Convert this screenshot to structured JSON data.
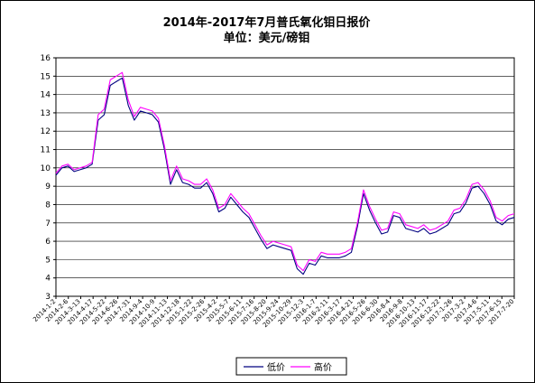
{
  "chart_data": {
    "type": "line",
    "title": "2014年-2017年7月普氏氧化钼日报价",
    "subtitle": "单位：美元/磅钼",
    "ylim": [
      3,
      16
    ],
    "yticks": [
      3,
      4,
      5,
      6,
      7,
      8,
      9,
      10,
      11,
      12,
      13,
      14,
      15,
      16
    ],
    "grid": true,
    "legend_position": "bottom-center",
    "x_tick_labels": [
      "2014-1-2",
      "2014-2-6",
      "2014-3-13",
      "2014-4-17",
      "2014-5-22",
      "2014-6-26",
      "2014-7-31",
      "2014-9-4",
      "2014-10-9",
      "2014-11-13",
      "2014-12-18",
      "2015-1-22",
      "2015-2-26",
      "2015-4-2",
      "2015-5-7",
      "2015-6-11",
      "2015-7-16",
      "2015-8-20",
      "2015-9-24",
      "2015-10-29",
      "2015-12-3",
      "2016-1-7",
      "2016-2-11",
      "2016-3-17",
      "2016-4-21",
      "2016-5-26",
      "2016-6-30",
      "2016-8-4",
      "2016-9-8",
      "2016-10-13",
      "2016-11-17",
      "2016-12-22",
      "2017-1-26",
      "2017-3-2",
      "2017-4-6",
      "2017-5-11",
      "2017-6-15",
      "2017-7-20"
    ],
    "series": [
      {
        "name": "低价",
        "color": "#000080",
        "values": [
          9.6,
          10.0,
          10.1,
          9.8,
          9.9,
          10.0,
          10.2,
          12.6,
          12.9,
          14.5,
          14.7,
          14.9,
          13.4,
          12.6,
          13.1,
          13.0,
          12.9,
          12.5,
          11.0,
          9.1,
          9.9,
          9.2,
          9.1,
          8.9,
          8.9,
          9.2,
          8.6,
          7.6,
          7.8,
          8.4,
          8.0,
          7.6,
          7.3,
          6.7,
          6.1,
          5.6,
          5.8,
          5.7,
          5.6,
          5.5,
          4.5,
          4.2,
          4.8,
          4.7,
          5.2,
          5.1,
          5.1,
          5.1,
          5.2,
          5.4,
          6.8,
          8.6,
          7.7,
          7.0,
          6.4,
          6.5,
          7.4,
          7.3,
          6.7,
          6.6,
          6.5,
          6.7,
          6.4,
          6.5,
          6.7,
          6.9,
          7.5,
          7.6,
          8.1,
          8.9,
          9.0,
          8.6,
          8.0,
          7.1,
          6.9,
          7.2,
          7.3
        ]
      },
      {
        "name": "高价",
        "color": "#ff00ff",
        "values": [
          9.7,
          10.1,
          10.2,
          9.9,
          10.0,
          10.1,
          10.3,
          12.9,
          13.2,
          14.8,
          15.0,
          15.2,
          13.7,
          12.8,
          13.3,
          13.2,
          13.1,
          12.7,
          11.2,
          9.3,
          10.1,
          9.4,
          9.3,
          9.1,
          9.1,
          9.4,
          8.8,
          7.8,
          8.0,
          8.6,
          8.2,
          7.8,
          7.5,
          6.9,
          6.3,
          5.8,
          6.0,
          5.9,
          5.8,
          5.7,
          4.7,
          4.4,
          5.0,
          4.9,
          5.4,
          5.3,
          5.3,
          5.3,
          5.4,
          5.6,
          7.0,
          8.8,
          7.9,
          7.2,
          6.6,
          6.7,
          7.6,
          7.5,
          6.9,
          6.8,
          6.7,
          6.9,
          6.6,
          6.7,
          6.9,
          7.1,
          7.7,
          7.8,
          8.3,
          9.1,
          9.2,
          8.8,
          8.2,
          7.3,
          7.1,
          7.4,
          7.5
        ]
      }
    ]
  }
}
